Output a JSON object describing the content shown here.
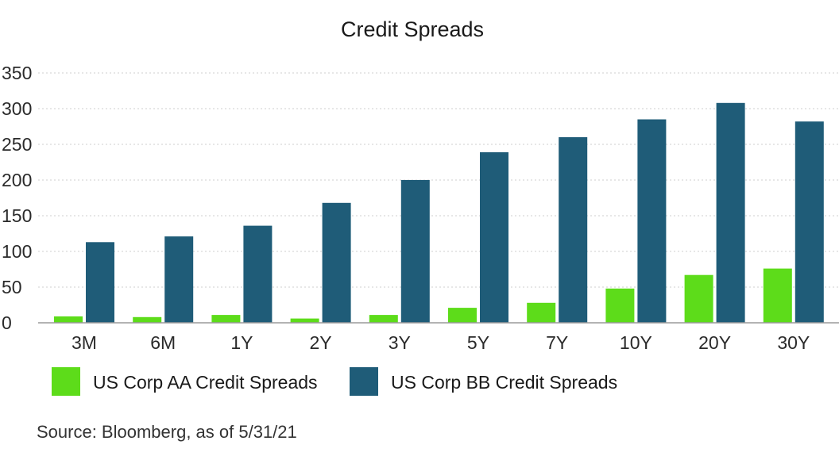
{
  "chart_data": {
    "type": "bar",
    "title": "Credit Spreads",
    "xlabel": "",
    "ylabel": "",
    "categories": [
      "3M",
      "6M",
      "1Y",
      "2Y",
      "3Y",
      "5Y",
      "7Y",
      "10Y",
      "20Y",
      "30Y"
    ],
    "ylim": [
      0,
      350
    ],
    "yticks": [
      0,
      50,
      100,
      150,
      200,
      250,
      300,
      350
    ],
    "grid": true,
    "legend_position": "bottom-left",
    "series": [
      {
        "name": "US Corp AA Credit Spreads",
        "color": "#5ddc1a",
        "values": [
          9,
          8,
          11,
          6,
          11,
          21,
          28,
          48,
          67,
          76
        ]
      },
      {
        "name": "US Corp BB Credit Spreads",
        "color": "#1f5c78",
        "values": [
          113,
          121,
          136,
          168,
          200,
          239,
          260,
          285,
          308,
          282
        ]
      }
    ]
  },
  "source": "Source: Bloomberg, as of 5/31/21"
}
